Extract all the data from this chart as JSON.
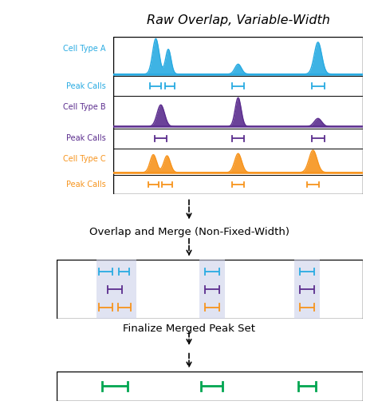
{
  "title": "Raw Overlap, Variable-Width",
  "bg_color": "#ffffff",
  "colors": {
    "A": "#29ABE2",
    "B": "#5B2D8E",
    "C": "#F7941D",
    "green": "#00A651"
  },
  "highlight_color": "#C8CCE8",
  "overlap_label": "Overlap and Merge (Non-Fixed-Width)",
  "finalize_label": "Finalize Merged Peak Set",
  "cell_labels": [
    "Cell Type A",
    "Cell Type B",
    "Cell Type C"
  ],
  "peak_label": "Peak Calls",
  "figsize": [
    4.74,
    5.12
  ],
  "dpi": 100
}
